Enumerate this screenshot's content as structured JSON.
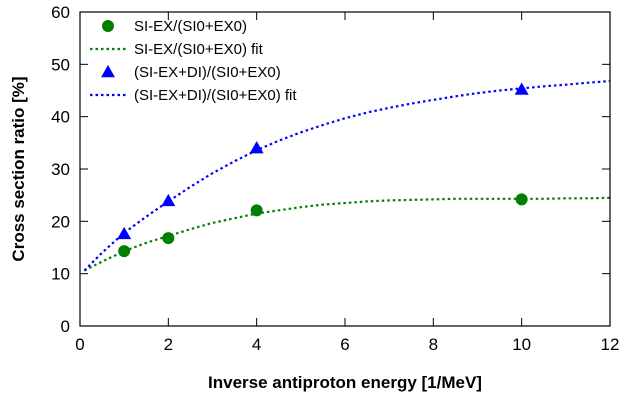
{
  "chart_data": {
    "type": "scatter",
    "xlabel": "Inverse antiproton energy [1/MeV]",
    "ylabel": "Cross section ratio [%]",
    "xlim": [
      0,
      12
    ],
    "ylim": [
      0,
      60
    ],
    "x_ticks": [
      "0",
      "2",
      "4",
      "6",
      "8",
      "10",
      "12"
    ],
    "y_ticks": [
      "0",
      "10",
      "20",
      "30",
      "40",
      "50",
      "60"
    ],
    "grid": false,
    "legend_position": "top-left",
    "series": [
      {
        "name": "SI-EX/(SI0+EX0)",
        "kind": "points",
        "marker": "circle",
        "color": "#008000",
        "x": [
          1,
          2,
          4,
          10
        ],
        "y": [
          14.3,
          16.8,
          22.1,
          24.2
        ]
      },
      {
        "name": "SI-EX/(SI0+EX0) fit",
        "kind": "dotted-line",
        "color": "#008000",
        "x": [
          0.1,
          0.5,
          1,
          1.5,
          2,
          2.5,
          3,
          3.5,
          4,
          4.5,
          5,
          5.5,
          6,
          6.5,
          7,
          7.5,
          8,
          8.5,
          9,
          9.5,
          10,
          10.5,
          11,
          11.5,
          12
        ],
        "y": [
          10.6,
          12.3,
          14.3,
          15.9,
          17.2,
          18.5,
          19.7,
          20.6,
          21.5,
          22.1,
          22.7,
          23.2,
          23.5,
          23.8,
          24.0,
          24.1,
          24.2,
          24.3,
          24.3,
          24.3,
          24.3,
          24.3,
          24.4,
          24.4,
          24.5
        ]
      },
      {
        "name": "(SI-EX+DI)/(SI0+EX0)",
        "kind": "points",
        "marker": "triangle",
        "color": "#0000ff",
        "x": [
          1,
          2,
          4,
          10
        ],
        "y": [
          17.6,
          23.9,
          34.0,
          45.2
        ]
      },
      {
        "name": "(SI-EX+DI)/(SI0+EX0) fit",
        "kind": "dotted-line",
        "color": "#0000ff",
        "x": [
          0.1,
          0.5,
          1,
          1.5,
          2,
          2.5,
          3,
          3.5,
          4,
          4.5,
          5,
          5.5,
          6,
          6.5,
          7,
          7.5,
          8,
          8.5,
          9,
          9.5,
          10,
          10.5,
          11,
          11.5,
          12
        ],
        "y": [
          10.6,
          14.0,
          17.8,
          20.9,
          23.8,
          26.6,
          29.2,
          31.5,
          33.6,
          35.4,
          37.0,
          38.4,
          39.7,
          40.8,
          41.7,
          42.5,
          43.2,
          43.9,
          44.5,
          45.0,
          45.4,
          45.8,
          46.1,
          46.5,
          46.8
        ]
      }
    ]
  }
}
